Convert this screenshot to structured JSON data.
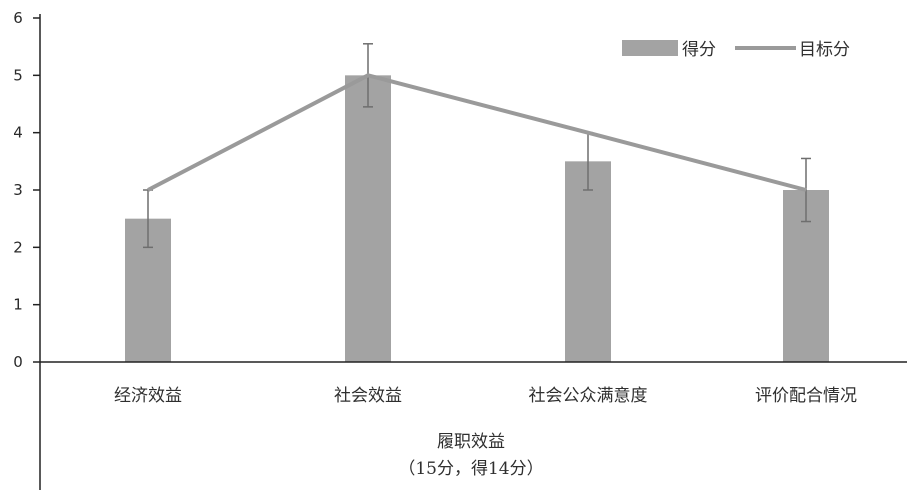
{
  "chart_data": {
    "type": "bar",
    "title": "",
    "categories": [
      "经济效益",
      "社会效益",
      "社会公众满意度",
      "评价配合情况"
    ],
    "series": [
      {
        "name": "得分",
        "type": "bar",
        "values": [
          2.5,
          5.0,
          3.5,
          3.0
        ]
      },
      {
        "name": "目标分",
        "type": "line",
        "values": [
          3.0,
          5.0,
          4.0,
          3.0
        ]
      }
    ],
    "error_bars": {
      "upper": [
        3.0,
        5.55,
        4.0,
        3.55
      ],
      "lower": [
        2.0,
        4.45,
        3.0,
        2.45
      ]
    },
    "ylim": [
      0,
      6
    ],
    "yticks": [
      "0",
      "1",
      "2",
      "3",
      "4",
      "5",
      "6"
    ],
    "xlabel_lines": [
      "履职效益",
      "（15分，得14分）"
    ],
    "ylabel": "",
    "grid": false,
    "legend_position": "top-right",
    "colors": {
      "bar": "#a3a3a3",
      "line": "#9a9a9a",
      "axis": "#222222",
      "error_bar": "#6e6e6e"
    }
  }
}
